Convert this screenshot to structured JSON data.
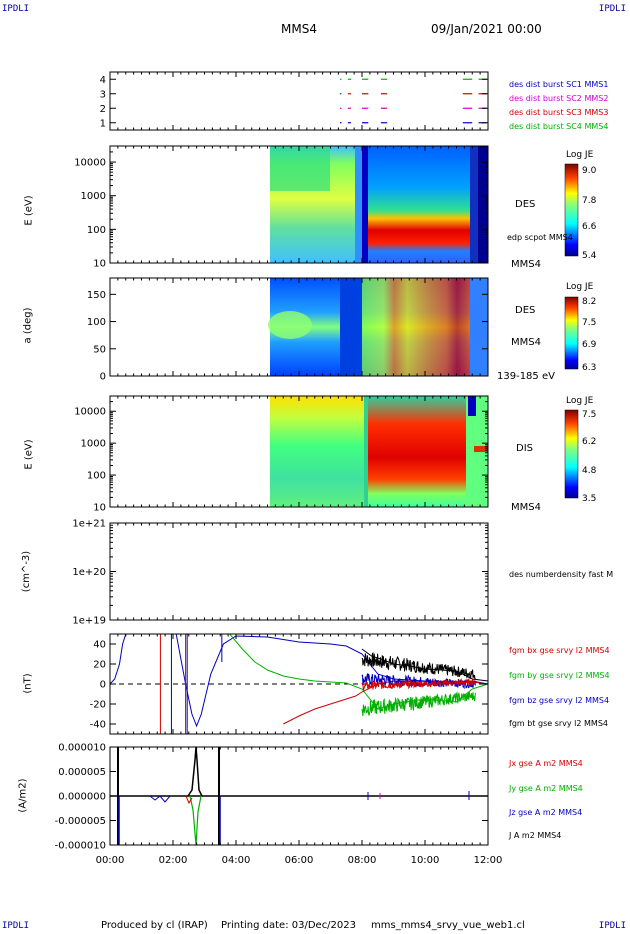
{
  "header": {
    "title": "MMS4",
    "date": "09/Jan/2021 00:00"
  },
  "corner_labels": {
    "top_left": "IPDLI",
    "top_right": "IPDLI",
    "bottom_left": "IPDLI",
    "bottom_right": "IPDLI"
  },
  "footer": {
    "produced_by": "Produced by cl (IRAP)",
    "printing_date": "Printing date: 03/Dec/2023",
    "file": "mms_mms4_srvy_vue_web1.cl"
  },
  "time_axis": {
    "ticks": [
      "00:00",
      "02:00",
      "04:00",
      "06:00",
      "08:00",
      "10:00",
      "12:00"
    ],
    "range_hours": [
      0,
      12
    ]
  },
  "colors": {
    "mms1": "#0000c0",
    "mms2": "#d000d0",
    "mms3": "#d00000",
    "mms4": "#00b000",
    "black": "#000000"
  },
  "chart_data": [
    {
      "type": "line",
      "name": "burst availability",
      "ylabel": "",
      "y_ticks": [
        "1",
        "2",
        "3",
        "4"
      ],
      "ylim": [
        0.5,
        4.5
      ],
      "legend": [
        {
          "label": "des dist burst SC1 MMS1",
          "color": "#0000c0"
        },
        {
          "label": "des dist burst SC2 MMS2",
          "color": "#d000d0"
        },
        {
          "label": "des dist burst SC3 MMS3",
          "color": "#d00000"
        },
        {
          "label": "des dist burst SC4 MMS4",
          "color": "#00b000"
        }
      ],
      "intervals_hours": [
        [
          7.3,
          7.35
        ],
        [
          7.55,
          7.65
        ],
        [
          8.0,
          8.2
        ],
        [
          8.6,
          8.8
        ],
        [
          11.2,
          11.5
        ],
        [
          11.7,
          11.95
        ]
      ]
    },
    {
      "type": "heatmap",
      "ylabel": "E (eV)",
      "y_ticks": [
        "10",
        "100",
        "1000",
        "10000"
      ],
      "y_scale": "log",
      "ylim": [
        10,
        30000
      ],
      "colorbar": {
        "title": "Log JE",
        "ticks": [
          "9.0",
          "7.8",
          "6.6",
          "5.4"
        ],
        "range": [
          5.4,
          9.0
        ]
      },
      "labels": {
        "right": "DES",
        "overlay": "edp scpot MMS4",
        "spacecraft": "MMS4"
      },
      "data_interval_hours": [
        5.0,
        12.0
      ]
    },
    {
      "type": "heatmap",
      "ylabel": "a (deg)",
      "y_ticks": [
        "0",
        "50",
        "100",
        "150"
      ],
      "ylim": [
        0,
        180
      ],
      "colorbar": {
        "title": "Log JE",
        "ticks": [
          "8.2",
          "7.5",
          "6.9",
          "6.3"
        ],
        "range": [
          6.3,
          8.2
        ]
      },
      "labels": {
        "right": "DES",
        "spacecraft": "MMS4",
        "energy_range": "139-185 eV"
      },
      "data_interval_hours": [
        5.0,
        12.0
      ]
    },
    {
      "type": "heatmap",
      "ylabel": "E (eV)",
      "y_ticks": [
        "10",
        "100",
        "1000",
        "10000"
      ],
      "y_scale": "log",
      "ylim": [
        10,
        30000
      ],
      "colorbar": {
        "title": "Log JE",
        "ticks": [
          "7.5",
          "6.2",
          "4.8",
          "3.5"
        ],
        "range": [
          3.5,
          7.5
        ]
      },
      "labels": {
        "right": "DIS",
        "spacecraft": "MMS4"
      },
      "data_interval_hours": [
        5.0,
        12.0
      ]
    },
    {
      "type": "line",
      "ylabel": "(cm^-3)",
      "y_ticks": [
        "1e+19",
        "1e+20",
        "1e+21"
      ],
      "y_scale": "log",
      "legend": [
        {
          "label": "des numberdensity fast M",
          "color": "#000000"
        }
      ]
    },
    {
      "type": "line",
      "ylabel": "(nT)",
      "y_ticks": [
        "-40",
        "-20",
        "0",
        "20",
        "40"
      ],
      "ylim": [
        -50,
        50
      ],
      "legend": [
        {
          "label": "fgm bx gse srvy l2 MMS4",
          "color": "#d00000"
        },
        {
          "label": "fgm by gse srvy l2 MMS4",
          "color": "#00b000"
        },
        {
          "label": "fgm bz gse srvy l2 MMS4",
          "color": "#0000c0"
        },
        {
          "label": "fgm bt gse srvy l2 MMS4",
          "color": "#000000"
        }
      ],
      "series": [
        {
          "name": "fgm bz gse srvy l2 MMS4",
          "x": [
            0,
            0.15,
            0.3,
            0.4,
            0.5,
            2.1,
            2.4,
            2.6,
            2.75,
            2.9,
            3.2,
            3.6,
            4.0,
            5.0,
            6.0,
            7.0,
            7.5,
            8.0,
            8.5,
            9.0,
            10.0,
            11.0,
            11.5,
            12.0
          ],
          "y": [
            0,
            5,
            20,
            40,
            55,
            55,
            0,
            -30,
            -42,
            -30,
            10,
            40,
            48,
            47,
            42,
            40,
            38,
            30,
            10,
            5,
            3,
            2,
            3,
            0
          ]
        },
        {
          "name": "fgm by gse srvy l2 MMS4",
          "x": [
            3.8,
            4.2,
            4.6,
            5.0,
            5.5,
            6.0,
            6.5,
            7.0,
            7.5,
            8.0,
            8.5,
            9.0,
            10.0,
            11.0,
            11.5,
            12.0
          ],
          "y": [
            50,
            35,
            22,
            14,
            8,
            5,
            3,
            2,
            1,
            -5,
            -25,
            -20,
            -15,
            -18,
            -5,
            0
          ]
        },
        {
          "name": "fgm bx gse srvy l2 MMS4",
          "x": [
            5.5,
            6.0,
            6.5,
            7.0,
            7.5,
            7.8,
            8.0,
            8.5,
            9.0,
            10.0,
            11.0,
            11.5,
            12.0
          ],
          "y": [
            -40,
            -32,
            -25,
            -20,
            -15,
            -12,
            -8,
            0,
            3,
            2,
            1,
            2,
            0
          ]
        },
        {
          "name": "fgm bt gse srvy l2 MMS4",
          "x": [
            8.0,
            8.3,
            8.6,
            9.0,
            9.5,
            10.0,
            10.5,
            11.0,
            11.5,
            12.0
          ],
          "y": [
            35,
            28,
            25,
            20,
            18,
            15,
            14,
            13,
            5,
            3
          ]
        }
      ]
    },
    {
      "type": "line",
      "ylabel": "(A/m2)",
      "y_ticks": [
        "-0.000010",
        "-0.000005",
        "0.000000",
        "0.000005",
        "0.000010"
      ],
      "ylim": [
        -1e-05,
        1e-05
      ],
      "legend": [
        {
          "label": "Jx gse A m2 MMS4",
          "color": "#d00000"
        },
        {
          "label": "Jy gse A m2 MMS4",
          "color": "#00b000"
        },
        {
          "label": "Jz gse A m2 MMS4",
          "color": "#0000c0"
        },
        {
          "label": "J A m2 MMS4",
          "color": "#000000"
        }
      ]
    }
  ]
}
